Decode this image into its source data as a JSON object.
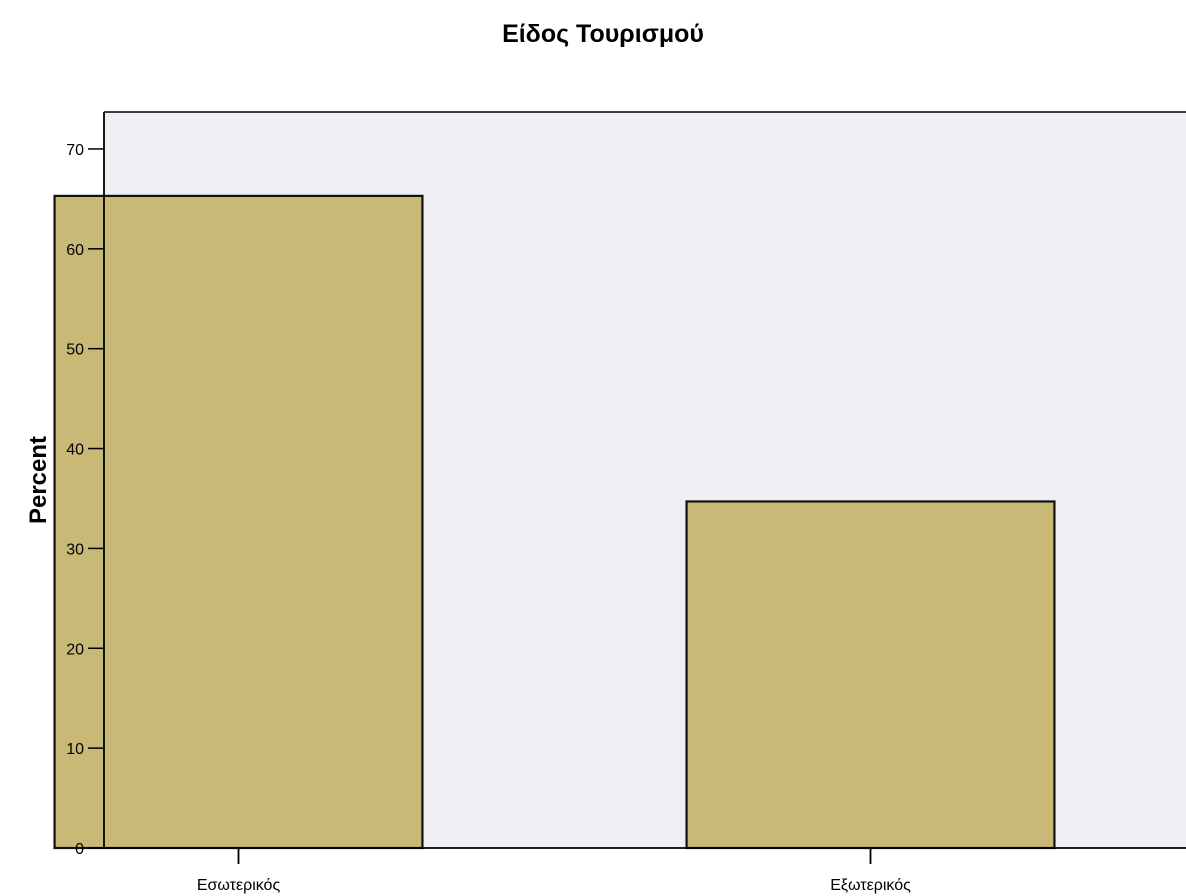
{
  "colors": {
    "plot_background": "#eef0f6",
    "bar_fill": "#c8b977",
    "bar_stroke": "#111111",
    "axis": "#000000"
  },
  "chart_data": {
    "type": "bar",
    "title": "Είδος Τουρισμού",
    "xlabel": "",
    "ylabel": "Percent",
    "categories": [
      "Εσωτερικός",
      "Εξωτερικός"
    ],
    "values": [
      65.3,
      34.7
    ],
    "ylim": [
      0,
      73.7
    ],
    "yticks": [
      0,
      10,
      20,
      30,
      40,
      50,
      60,
      70
    ],
    "grid": false,
    "legend": "none"
  }
}
